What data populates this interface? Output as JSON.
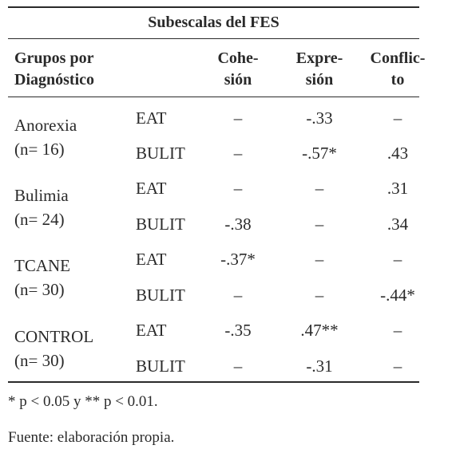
{
  "caption": "Subescalas del FES",
  "header": {
    "groups": [
      "Grupos por",
      "Diagnóstico"
    ],
    "cohesion": [
      "Cohe-",
      "sión"
    ],
    "expresion": [
      "Expre-",
      "sión"
    ],
    "conflicto": [
      "Conflic-",
      "to"
    ]
  },
  "groups": [
    {
      "name": "Anorexia",
      "n": "(n= 16)",
      "rows": [
        {
          "instrument": "EAT",
          "cohesion": "–",
          "expresion": "-.33",
          "conflicto": "–"
        },
        {
          "instrument": "BULIT",
          "cohesion": "–",
          "expresion": "-.57*",
          "conflicto": ".43"
        }
      ]
    },
    {
      "name": "Bulimia",
      "n": "(n= 24)",
      "rows": [
        {
          "instrument": "EAT",
          "cohesion": "–",
          "expresion": "–",
          "conflicto": ".31"
        },
        {
          "instrument": "BULIT",
          "cohesion": "-.38",
          "expresion": "–",
          "conflicto": ".34"
        }
      ]
    },
    {
      "name": "TCANE",
      "n": "(n= 30)",
      "rows": [
        {
          "instrument": "EAT",
          "cohesion": "-.37*",
          "expresion": "–",
          "conflicto": "–"
        },
        {
          "instrument": "BULIT",
          "cohesion": "–",
          "expresion": "–",
          "conflicto": "-.44*"
        }
      ]
    },
    {
      "name": "CONTROL",
      "n": "(n= 30)",
      "rows": [
        {
          "instrument": "EAT",
          "cohesion": "-.35",
          "expresion": ".47**",
          "conflicto": "–"
        },
        {
          "instrument": "BULIT",
          "cohesion": "–",
          "expresion": "-.31",
          "conflicto": "–"
        }
      ]
    }
  ],
  "notes": {
    "significance": "* p < 0.05 y ** p < 0.01.",
    "source": "Fuente: elaboración propia."
  }
}
